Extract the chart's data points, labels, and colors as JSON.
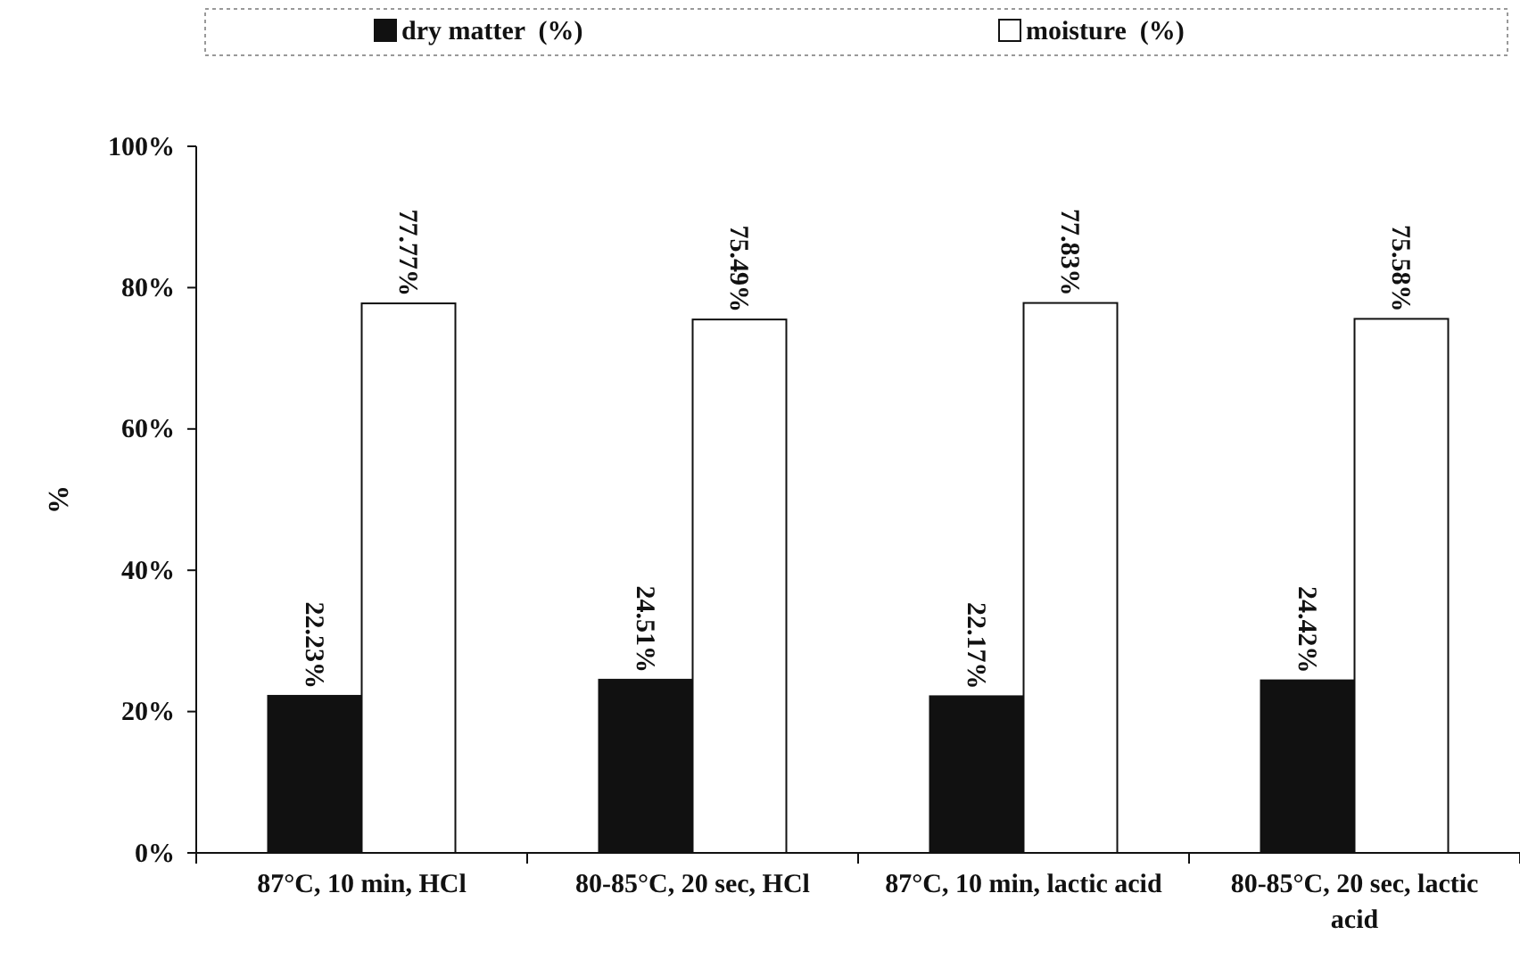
{
  "chart_data": {
    "type": "bar",
    "ylabel": "%",
    "categories": [
      "87°C, 10 min, HCl",
      "80-85°C, 20 sec, HCl",
      "87°C, 10 min, lactic acid",
      "80-85°C, 20 sec, lactic acid"
    ],
    "series": [
      {
        "name": "dry matter  (%)",
        "color": "#111111",
        "values": [
          22.23,
          24.51,
          22.17,
          24.42
        ],
        "value_labels": [
          "22.23%",
          "24.51%",
          "22.17%",
          "24.42%"
        ]
      },
      {
        "name": "moisture  (%)",
        "color": "#ffffff",
        "values": [
          77.77,
          75.49,
          77.83,
          75.58
        ],
        "value_labels": [
          "77.77%",
          "75.49%",
          "77.83%",
          "75.58%"
        ]
      }
    ],
    "ylim": [
      0,
      100
    ],
    "yticks": [
      {
        "value": 0,
        "label": "0%"
      },
      {
        "value": 20,
        "label": "20%"
      },
      {
        "value": 40,
        "label": "40%"
      },
      {
        "value": 60,
        "label": "60%"
      },
      {
        "value": 80,
        "label": "80%"
      },
      {
        "value": 100,
        "label": "100%"
      }
    ],
    "legend": "top",
    "grid": false
  }
}
